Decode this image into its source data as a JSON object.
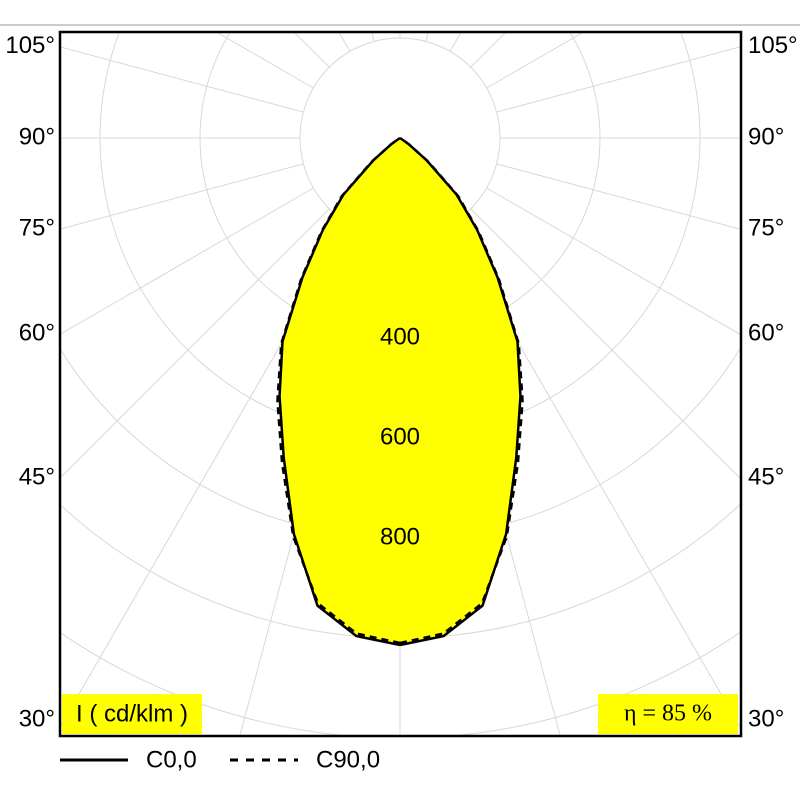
{
  "chart_data": {
    "type": "polar",
    "angles": [
      0,
      5,
      10,
      15,
      20,
      25,
      30,
      35,
      40,
      45,
      50,
      55,
      60
    ],
    "series": [
      {
        "name": "C0,0",
        "color": "#000000",
        "dash": "solid",
        "fill": "#ffff00",
        "values": [
          1014,
          1000,
          950,
          820,
          680,
          570,
          470,
          340,
          240,
          160,
          70,
          20,
          0
        ]
      },
      {
        "name": "C90,0",
        "color": "#000000",
        "dash": "dashed",
        "values": [
          1010,
          995,
          945,
          825,
          690,
          580,
          475,
          345,
          245,
          165,
          75,
          22,
          0
        ]
      }
    ],
    "rlim": [
      0,
      1000
    ],
    "rgrid": [
      200,
      400,
      600,
      800,
      1000,
      1200,
      1400
    ],
    "rticks": [
      400,
      600,
      800
    ],
    "angle_grid": [
      0,
      15,
      30,
      45,
      60,
      75,
      90,
      105,
      120,
      135,
      150,
      165,
      180
    ],
    "angle_ticks": [
      {
        "value": 30,
        "label": "30°"
      },
      {
        "value": 45,
        "label": "45°"
      },
      {
        "value": 60,
        "label": "60°"
      },
      {
        "value": 75,
        "label": "75°"
      },
      {
        "value": 90,
        "label": "90°"
      },
      {
        "value": 105,
        "label": "105°"
      }
    ],
    "unit_label": "I ( cd/klm )",
    "efficiency_label": "η = 85 %"
  }
}
